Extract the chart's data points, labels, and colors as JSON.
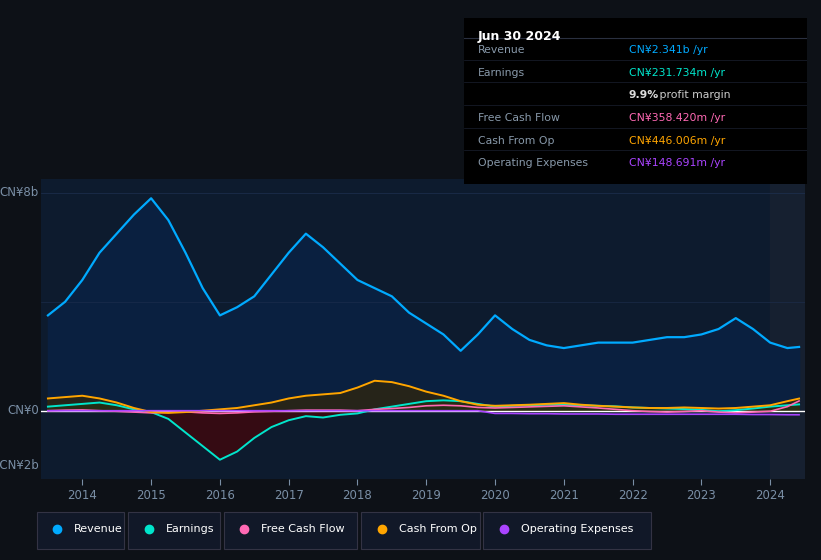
{
  "bg_color": "#0d1117",
  "plot_bg_color": "#0d1b2e",
  "axis_label_color": "#7a8fa6",
  "zero_line_color": "#ffffff",
  "grid_color": "#1e3050",
  "colors": {
    "revenue": "#00aaff",
    "earnings": "#00e5cc",
    "free_cash_flow": "#ff69b4",
    "cash_from_op": "#ffa500",
    "op_expenses": "#aa44ff",
    "revenue_fill": "#0a2040",
    "earnings_fill_pos": "#0a3a30",
    "earnings_fill_neg": "#3a0a10",
    "cash_from_op_fill_pos": "#3a2800"
  },
  "legend_items": [
    {
      "label": "Revenue",
      "color": "#00aaff"
    },
    {
      "label": "Earnings",
      "color": "#00e5cc"
    },
    {
      "label": "Free Cash Flow",
      "color": "#ff69b4"
    },
    {
      "label": "Cash From Op",
      "color": "#ffa500"
    },
    {
      "label": "Operating Expenses",
      "color": "#aa44ff"
    }
  ],
  "x_years": [
    2013.5,
    2013.75,
    2014.0,
    2014.25,
    2014.5,
    2014.75,
    2015.0,
    2015.25,
    2015.5,
    2015.75,
    2016.0,
    2016.25,
    2016.5,
    2016.75,
    2017.0,
    2017.25,
    2017.5,
    2017.75,
    2018.0,
    2018.25,
    2018.5,
    2018.75,
    2019.0,
    2019.25,
    2019.5,
    2019.75,
    2020.0,
    2020.25,
    2020.5,
    2020.75,
    2021.0,
    2021.25,
    2021.5,
    2021.75,
    2022.0,
    2022.25,
    2022.5,
    2022.75,
    2023.0,
    2023.25,
    2023.5,
    2023.75,
    2024.0,
    2024.25,
    2024.42
  ],
  "revenue": [
    3500000000.0,
    4000000000.0,
    4800000000.0,
    5800000000.0,
    6500000000.0,
    7200000000.0,
    7800000000.0,
    7000000000.0,
    5800000000.0,
    4500000000.0,
    3500000000.0,
    3800000000.0,
    4200000000.0,
    5000000000.0,
    5800000000.0,
    6500000000.0,
    6000000000.0,
    5400000000.0,
    4800000000.0,
    4500000000.0,
    4200000000.0,
    3600000000.0,
    3200000000.0,
    2800000000.0,
    2200000000.0,
    2800000000.0,
    3500000000.0,
    3000000000.0,
    2600000000.0,
    2400000000.0,
    2300000000.0,
    2400000000.0,
    2500000000.0,
    2500000000.0,
    2500000000.0,
    2600000000.0,
    2700000000.0,
    2700000000.0,
    2800000000.0,
    3000000000.0,
    3400000000.0,
    3000000000.0,
    2500000000.0,
    2300000000.0,
    2341000000.0
  ],
  "earnings": [
    150000000.0,
    200000000.0,
    250000000.0,
    300000000.0,
    200000000.0,
    50000000.0,
    -50000000.0,
    -300000000.0,
    -800000000.0,
    -1300000000.0,
    -1800000000.0,
    -1500000000.0,
    -1000000000.0,
    -600000000.0,
    -350000000.0,
    -200000000.0,
    -250000000.0,
    -150000000.0,
    -100000000.0,
    50000000.0,
    150000000.0,
    250000000.0,
    350000000.0,
    380000000.0,
    350000000.0,
    250000000.0,
    150000000.0,
    180000000.0,
    200000000.0,
    220000000.0,
    220000000.0,
    200000000.0,
    180000000.0,
    160000000.0,
    120000000.0,
    100000000.0,
    80000000.0,
    60000000.0,
    30000000.0,
    -20000000.0,
    20000000.0,
    80000000.0,
    150000000.0,
    200000000.0,
    231700000.0
  ],
  "cash_from_op": [
    450000000.0,
    500000000.0,
    550000000.0,
    450000000.0,
    300000000.0,
    100000000.0,
    -50000000.0,
    -80000000.0,
    -50000000.0,
    0.0,
    50000000.0,
    100000000.0,
    200000000.0,
    300000000.0,
    450000000.0,
    550000000.0,
    600000000.0,
    650000000.0,
    850000000.0,
    1100000000.0,
    1050000000.0,
    900000000.0,
    700000000.0,
    550000000.0,
    350000000.0,
    220000000.0,
    180000000.0,
    200000000.0,
    220000000.0,
    250000000.0,
    280000000.0,
    220000000.0,
    180000000.0,
    150000000.0,
    120000000.0,
    100000000.0,
    100000000.0,
    120000000.0,
    100000000.0,
    80000000.0,
    100000000.0,
    150000000.0,
    200000000.0,
    350000000.0,
    446000000.0
  ],
  "free_cash_flow": [
    0.0,
    20000000.0,
    30000000.0,
    0.0,
    -20000000.0,
    -50000000.0,
    -80000000.0,
    -60000000.0,
    -40000000.0,
    -80000000.0,
    -100000000.0,
    -80000000.0,
    -40000000.0,
    -20000000.0,
    0.0,
    20000000.0,
    20000000.0,
    20000000.0,
    0.0,
    50000000.0,
    80000000.0,
    120000000.0,
    180000000.0,
    200000000.0,
    180000000.0,
    120000000.0,
    100000000.0,
    120000000.0,
    140000000.0,
    160000000.0,
    180000000.0,
    140000000.0,
    100000000.0,
    50000000.0,
    0.0,
    -30000000.0,
    -50000000.0,
    -30000000.0,
    0.0,
    -50000000.0,
    -80000000.0,
    -50000000.0,
    -20000000.0,
    150000000.0,
    358000000.0
  ],
  "op_expenses": [
    0.0,
    0.0,
    0.0,
    0.0,
    0.0,
    0.0,
    0.0,
    0.0,
    0.0,
    0.0,
    0.0,
    0.0,
    0.0,
    0.0,
    0.0,
    0.0,
    0.0,
    0.0,
    0.0,
    0.0,
    0.0,
    0.0,
    0.0,
    0.0,
    0.0,
    0.0,
    -100000000.0,
    -100000000.0,
    -110000000.0,
    -110000000.0,
    -120000000.0,
    -120000000.0,
    -120000000.0,
    -130000000.0,
    -130000000.0,
    -130000000.0,
    -130000000.0,
    -130000000.0,
    -130000000.0,
    -130000000.0,
    -130000000.0,
    -140000000.0,
    -140000000.0,
    -148000000.0,
    -148700000.0
  ],
  "ylim": [
    -2500000000.0,
    8500000000.0
  ],
  "xlim": [
    2013.4,
    2024.5
  ],
  "xtick_years": [
    2014,
    2015,
    2016,
    2017,
    2018,
    2019,
    2020,
    2021,
    2022,
    2023,
    2024
  ],
  "ylabel_top": "CN¥8b",
  "ylabel_zero": "CN¥0",
  "ylabel_neg": "-CN¥2b",
  "shaded_right_x": 2024.0,
  "title_date": "Jun 30 2024",
  "info_rows": [
    {
      "label": "Revenue",
      "value": "CN¥2.341b /yr",
      "vcolor": "#00aaff"
    },
    {
      "label": "Earnings",
      "value": "CN¥231.734m /yr",
      "vcolor": "#00e5cc"
    },
    {
      "label": "",
      "value": "9.9%",
      "vcolor": "#dddddd",
      "suffix": " profit margin"
    },
    {
      "label": "Free Cash Flow",
      "value": "CN¥358.420m /yr",
      "vcolor": "#ff69b4"
    },
    {
      "label": "Cash From Op",
      "value": "CN¥446.006m /yr",
      "vcolor": "#ffa500"
    },
    {
      "label": "Operating Expenses",
      "value": "CN¥148.691m /yr",
      "vcolor": "#aa44ff"
    }
  ]
}
